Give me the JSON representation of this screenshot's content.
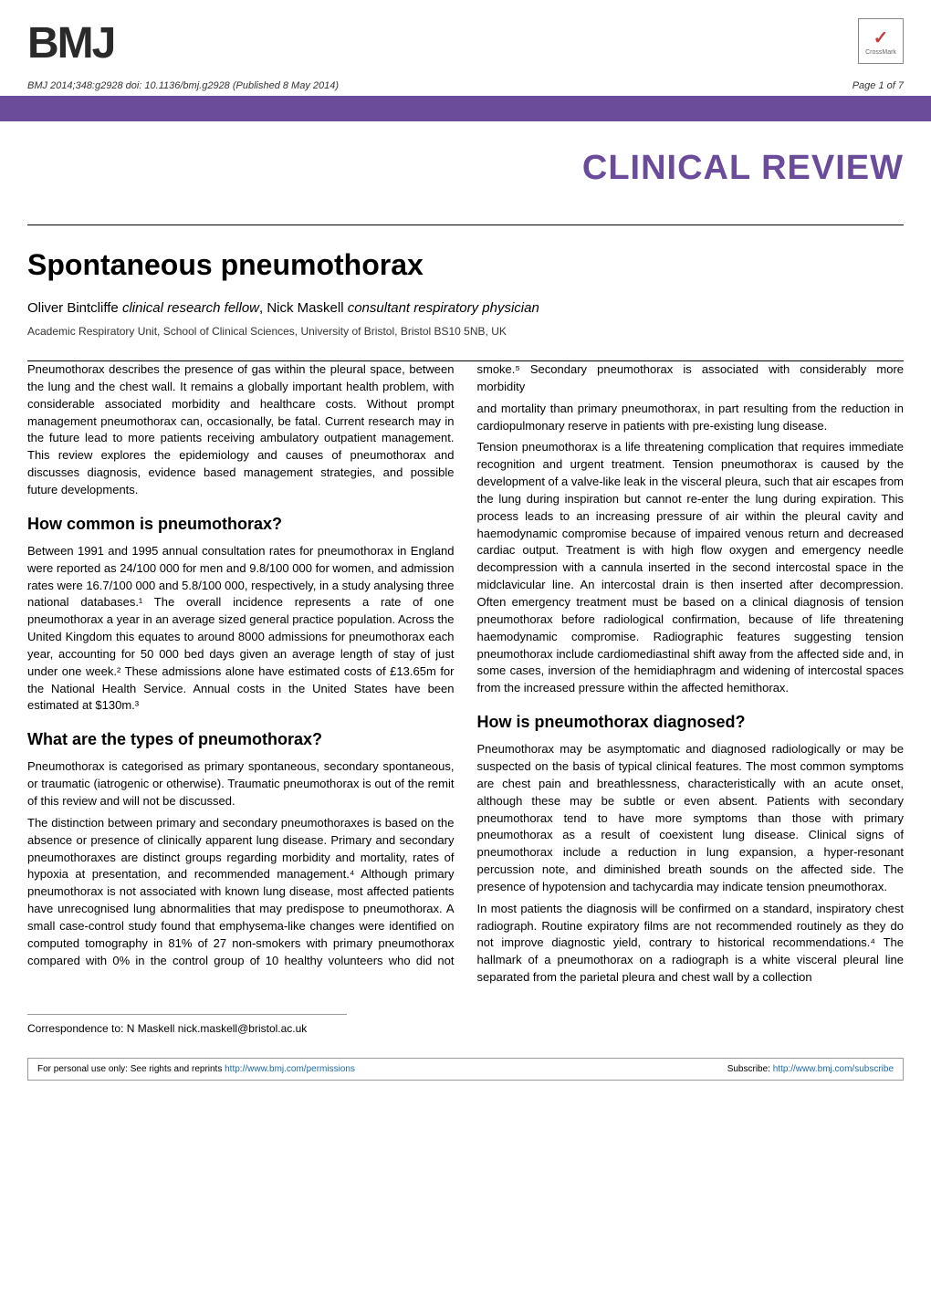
{
  "logo": "BMJ",
  "crossmark_label": "CrossMark",
  "citation": "BMJ 2014;348:g2928 doi: 10.1136/bmj.g2928 (Published 8 May 2014)",
  "page_number": "Page 1 of 7",
  "section_header": "CLINICAL REVIEW",
  "article_title": "Spontaneous pneumothorax",
  "colors": {
    "purple": "#6b4c9a",
    "link": "#1a6ba8",
    "text": "#000000",
    "meta_text": "#333333"
  },
  "authors": [
    {
      "name": "Oliver Bintcliffe",
      "role": "clinical research fellow"
    },
    {
      "name": "Nick Maskell",
      "role": "consultant respiratory physician"
    }
  ],
  "affiliation": "Academic Respiratory Unit, School of Clinical Sciences, University of Bristol, Bristol BS10 5NB, UK",
  "intro": "Pneumothorax describes the presence of gas within the pleural space, between the lung and the chest wall. It remains a globally important health problem, with considerable associated morbidity and healthcare costs. Without prompt management pneumothorax can, occasionally, be fatal. Current research may in the future lead to more patients receiving ambulatory outpatient management. This review explores the epidemiology and causes of pneumothorax and discusses diagnosis, evidence based management strategies, and possible future developments.",
  "h_common": "How common is pneumothorax?",
  "p_common": "Between 1991 and 1995 annual consultation rates for pneumothorax in England were reported as 24/100 000 for men and 9.8/100 000 for women, and admission rates were 16.7/100 000 and 5.8/100 000, respectively, in a study analysing three national databases.¹ The overall incidence represents a rate of one pneumothorax a year in an average sized general practice population. Across the United Kingdom this equates to around 8000 admissions for pneumothorax each year, accounting for 50 000 bed days given an average length of stay of just under one week.² These admissions alone have estimated costs of £13.65m for the National Health Service. Annual costs in the United States have been estimated at $130m.³",
  "h_types": "What are the types of pneumothorax?",
  "p_types_1": "Pneumothorax is categorised as primary spontaneous, secondary spontaneous, or traumatic (iatrogenic or otherwise). Traumatic pneumothorax is out of the remit of this review and will not be discussed.",
  "p_types_2": "The distinction between primary and secondary pneumothoraxes is based on the absence or presence of clinically apparent lung disease. Primary and secondary pneumothoraxes are distinct groups regarding morbidity and mortality, rates of hypoxia at presentation, and recommended management.⁴ Although primary pneumothorax is not associated with known lung disease, most affected patients have unrecognised lung abnormalities that may predispose to pneumothorax. A small case-control study found that emphysema-like changes were identified on computed tomography in 81% of 27 non-smokers with primary pneumothorax compared with 0% in the control group of 10 healthy volunteers who did not smoke.⁵ Secondary pneumothorax is associated with considerably more morbidity",
  "p_types_3": "and mortality than primary pneumothorax, in part resulting from the reduction in cardiopulmonary reserve in patients with pre-existing lung disease.",
  "p_tension": "Tension pneumothorax is a life threatening complication that requires immediate recognition and urgent treatment. Tension pneumothorax is caused by the development of a valve-like leak in the visceral pleura, such that air escapes from the lung during inspiration but cannot re-enter the lung during expiration. This process leads to an increasing pressure of air within the pleural cavity and haemodynamic compromise because of impaired venous return and decreased cardiac output. Treatment is with high flow oxygen and emergency needle decompression with a cannula inserted in the second intercostal space in the midclavicular line. An intercostal drain is then inserted after decompression. Often emergency treatment must be based on a clinical diagnosis of tension pneumothorax before radiological confirmation, because of life threatening haemodynamic compromise. Radiographic features suggesting tension pneumothorax include cardiomediastinal shift away from the affected side and, in some cases, inversion of the hemidiaphragm and widening of intercostal spaces from the increased pressure within the affected hemithorax.",
  "h_diag": "How is pneumothorax diagnosed?",
  "p_diag_1": "Pneumothorax may be asymptomatic and diagnosed radiologically or may be suspected on the basis of typical clinical features. The most common symptoms are chest pain and breathlessness, characteristically with an acute onset, although these may be subtle or even absent. Patients with secondary pneumothorax tend to have more symptoms than those with primary pneumothorax as a result of coexistent lung disease. Clinical signs of pneumothorax include a reduction in lung expansion, a hyper-resonant percussion note, and diminished breath sounds on the affected side. The presence of hypotension and tachycardia may indicate tension pneumothorax.",
  "p_diag_2": "In most patients the diagnosis will be confirmed on a standard, inspiratory chest radiograph. Routine expiratory films are not recommended routinely as they do not improve diagnostic yield, contrary to historical recommendations.⁴ The hallmark of a pneumothorax on a radiograph is a white visceral pleural line separated from the parietal pleura and chest wall by a collection",
  "correspondence": "Correspondence to: N Maskell nick.maskell@bristol.ac.uk",
  "footer_left": "For personal use only: See rights and reprints ",
  "footer_left_link": "http://www.bmj.com/permissions",
  "footer_right": "Subscribe: ",
  "footer_right_link": "http://www.bmj.com/subscribe"
}
